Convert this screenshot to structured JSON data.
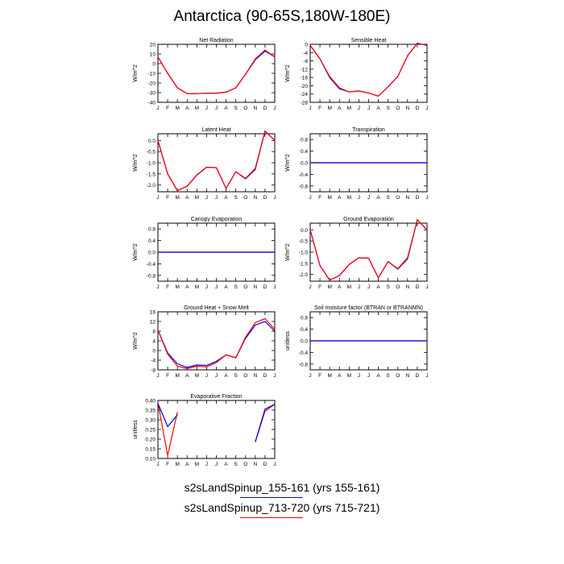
{
  "title": "Antarctica (90-65S,180W-180E)",
  "colors": {
    "series1": "#0000ff",
    "series2": "#ff0000"
  },
  "legend": [
    {
      "label": "s2sLandSpinup_155-161 (yrs 155-161)",
      "color": "#0000ff"
    },
    {
      "label": "s2sLandSpinup_713-720 (yrs 715-721)",
      "color": "#ff0000"
    }
  ],
  "chart_data": [
    {
      "type": "line",
      "title": "Net Radiation",
      "ylabel": "W/m^2",
      "categories": [
        "J",
        "F",
        "M",
        "A",
        "M",
        "J",
        "J",
        "A",
        "S",
        "O",
        "N",
        "D",
        "J"
      ],
      "ylim": [
        -40,
        20
      ],
      "yticks": [
        -40,
        -30,
        -20,
        -10,
        0,
        10,
        20
      ],
      "ytick_labels": [
        "-40",
        "-30",
        "-20",
        "-10",
        "0",
        "10",
        "20"
      ],
      "series": [
        {
          "color": "#0000ff",
          "values": [
            7,
            -10,
            -25,
            -31,
            -31,
            -30.5,
            -30.5,
            -29.5,
            -25,
            -11,
            4,
            13,
            7
          ]
        },
        {
          "color": "#ff0000",
          "values": [
            7,
            -10,
            -25,
            -31,
            -31,
            -30.5,
            -30.5,
            -29.5,
            -25,
            -11,
            5,
            14,
            7
          ]
        }
      ]
    },
    {
      "type": "line",
      "title": "Sensible Heat",
      "ylabel": "W/m^2",
      "categories": [
        "J",
        "F",
        "M",
        "A",
        "M",
        "J",
        "J",
        "A",
        "S",
        "O",
        "N",
        "D",
        "J"
      ],
      "ylim": [
        -28,
        0
      ],
      "yticks": [
        0,
        -4,
        -8,
        -12,
        -16,
        -20,
        -24,
        -28
      ],
      "ytick_labels": [
        "0",
        "-4",
        "-8",
        "-12",
        "-16",
        "-20",
        "-24",
        "-28"
      ],
      "series": [
        {
          "color": "#0000ff",
          "values": [
            -0.5,
            -7,
            -16,
            -21.5,
            -23,
            -22.5,
            -23.5,
            -25,
            -20.5,
            -15.5,
            -5.5,
            0.5,
            -0.5
          ]
        },
        {
          "color": "#ff0000",
          "values": [
            -0.5,
            -7,
            -15.5,
            -21,
            -23,
            -22.5,
            -23.5,
            -25,
            -20.5,
            -15.5,
            -5.5,
            0.5,
            -0.5
          ]
        }
      ]
    },
    {
      "type": "line",
      "title": "Latent Heat",
      "ylabel": "W/m^2",
      "categories": [
        "J",
        "F",
        "M",
        "A",
        "M",
        "J",
        "J",
        "A",
        "S",
        "O",
        "N",
        "D",
        "J"
      ],
      "ylim": [
        -2.3,
        0.3
      ],
      "yticks": [
        0,
        -0.5,
        -1.0,
        -1.5,
        -2.0
      ],
      "ytick_labels": [
        "0.0",
        "-0.5",
        "-1.0",
        "-1.5",
        "-2.0"
      ],
      "series": [
        {
          "color": "#0000ff",
          "values": [
            0.0,
            -1.5,
            -2.25,
            -2.05,
            -1.55,
            -1.2,
            -1.22,
            -2.15,
            -1.4,
            -1.72,
            -1.3,
            0.42,
            0.0
          ]
        },
        {
          "color": "#ff0000",
          "values": [
            0.0,
            -1.5,
            -2.25,
            -2.05,
            -1.55,
            -1.2,
            -1.22,
            -2.15,
            -1.4,
            -1.7,
            -1.25,
            0.42,
            0.0
          ]
        }
      ]
    },
    {
      "type": "line",
      "title": "Transpiration",
      "ylabel": "W/m^2",
      "categories": [
        "J",
        "F",
        "M",
        "A",
        "M",
        "J",
        "J",
        "A",
        "S",
        "O",
        "N",
        "D",
        "J"
      ],
      "ylim": [
        -1,
        1
      ],
      "yticks": [
        0.8,
        0.4,
        0,
        -0.4,
        -0.8
      ],
      "ytick_labels": [
        "0.8",
        "0.4",
        "0.0",
        "-0.4",
        "-0.8"
      ],
      "series": [
        {
          "color": "#ff0000",
          "values": [
            0,
            0,
            0,
            0,
            0,
            0,
            0,
            0,
            0,
            0,
            0,
            0,
            0
          ]
        },
        {
          "color": "#0000ff",
          "values": [
            0,
            0,
            0,
            0,
            0,
            0,
            0,
            0,
            0,
            0,
            0,
            0,
            0
          ]
        }
      ]
    },
    {
      "type": "line",
      "title": "Canopy Evaporation",
      "ylabel": "W/m^2",
      "categories": [
        "J",
        "F",
        "M",
        "A",
        "M",
        "J",
        "J",
        "A",
        "S",
        "O",
        "N",
        "D",
        "J"
      ],
      "ylim": [
        -1,
        1
      ],
      "yticks": [
        0.8,
        0.4,
        0,
        -0.4,
        -0.8
      ],
      "ytick_labels": [
        "0.8",
        "0.4",
        "0.0",
        "-0.4",
        "-0.8"
      ],
      "series": [
        {
          "color": "#ff0000",
          "values": [
            0,
            0,
            0,
            0,
            0,
            0,
            0,
            0,
            0,
            0,
            0,
            0,
            0
          ]
        },
        {
          "color": "#0000ff",
          "values": [
            0,
            0,
            0,
            0,
            0,
            0,
            0,
            0,
            0,
            0,
            0,
            0,
            0
          ]
        }
      ]
    },
    {
      "type": "line",
      "title": "Ground Evaporation",
      "ylabel": "W/m^2",
      "categories": [
        "J",
        "F",
        "M",
        "A",
        "M",
        "J",
        "J",
        "A",
        "S",
        "O",
        "N",
        "D",
        "J"
      ],
      "ylim": [
        -2.3,
        0.3
      ],
      "yticks": [
        0,
        -0.5,
        -1.0,
        -1.5,
        -2.0
      ],
      "ytick_labels": [
        "0.0",
        "-0.5",
        "-1.0",
        "-1.5",
        "-2.0"
      ],
      "series": [
        {
          "color": "#0000ff",
          "values": [
            0.0,
            -1.6,
            -2.25,
            -2.05,
            -1.55,
            -1.25,
            -1.27,
            -2.15,
            -1.42,
            -1.76,
            -1.3,
            0.45,
            0.0
          ]
        },
        {
          "color": "#ff0000",
          "values": [
            0.0,
            -1.6,
            -2.25,
            -2.05,
            -1.55,
            -1.25,
            -1.27,
            -2.15,
            -1.42,
            -1.74,
            -1.25,
            0.45,
            0.0
          ]
        }
      ]
    },
    {
      "type": "line",
      "title": "Ground Heat + Snow Melt",
      "ylabel": "W/m^2",
      "categories": [
        "J",
        "F",
        "M",
        "A",
        "M",
        "J",
        "J",
        "A",
        "S",
        "O",
        "N",
        "D",
        "J"
      ],
      "ylim": [
        -8,
        16
      ],
      "yticks": [
        16,
        12,
        8,
        4,
        0,
        -4,
        -8
      ],
      "ytick_labels": [
        "16",
        "12",
        "8",
        "4",
        "0",
        "-4",
        "-8"
      ],
      "series": [
        {
          "color": "#0000ff",
          "values": [
            8.5,
            -1,
            -5.5,
            -7,
            -6,
            -6.2,
            -4.5,
            -1.8,
            -3,
            5,
            10.5,
            12,
            8
          ]
        },
        {
          "color": "#ff0000",
          "values": [
            8.5,
            -1.5,
            -6.5,
            -7.5,
            -6.5,
            -6.8,
            -5,
            -1.8,
            -3,
            5.5,
            11.5,
            13.2,
            8.8
          ]
        }
      ]
    },
    {
      "type": "line",
      "title": "Soil moisture factor (BTRAN or BTRANMN)",
      "ylabel": "unitless",
      "categories": [
        "J",
        "F",
        "M",
        "A",
        "M",
        "J",
        "J",
        "A",
        "S",
        "O",
        "N",
        "D",
        "J"
      ],
      "ylim": [
        -1,
        1
      ],
      "yticks": [
        0.8,
        0.4,
        0,
        -0.4,
        -0.8
      ],
      "ytick_labels": [
        "0.8",
        "0.4",
        "0.0",
        "-0.4",
        "-0.8"
      ],
      "series": [
        {
          "color": "#ff0000",
          "values": [
            0,
            0,
            0,
            0,
            0,
            0,
            0,
            0,
            0,
            0,
            0,
            0,
            0
          ]
        },
        {
          "color": "#0000ff",
          "values": [
            0,
            0,
            0,
            0,
            0,
            0,
            0,
            0,
            0,
            0,
            0,
            0,
            0
          ]
        }
      ]
    },
    {
      "type": "line",
      "title": "Evaporative Fraction",
      "ylabel": "unitless",
      "categories": [
        "J",
        "F",
        "M",
        "A",
        "M",
        "J",
        "J",
        "A",
        "S",
        "O",
        "N",
        "D",
        "J"
      ],
      "ylim": [
        0.1,
        0.4
      ],
      "yticks": [
        0.4,
        0.35,
        0.3,
        0.25,
        0.2,
        0.15,
        0.1
      ],
      "ytick_labels": [
        "0.40",
        "0.35",
        "0.30",
        "0.25",
        "0.20",
        "0.15",
        "0.10"
      ],
      "series": [
        {
          "color": "#ff0000",
          "values": [
            0.39,
            0.115,
            0.34,
            null,
            null,
            null,
            null,
            null,
            null,
            null,
            0.185,
            0.345,
            0.38
          ]
        },
        {
          "color": "#0000ff",
          "values": [
            0.385,
            0.265,
            0.325,
            null,
            null,
            null,
            null,
            null,
            null,
            null,
            0.185,
            0.355,
            0.38
          ]
        }
      ]
    }
  ]
}
